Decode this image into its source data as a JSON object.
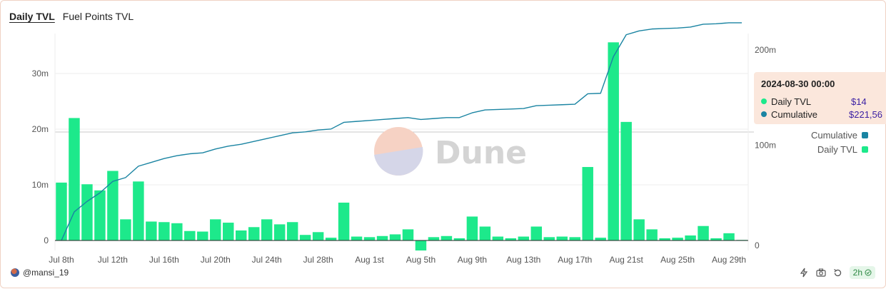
{
  "tabs": [
    {
      "label": "Daily TVL",
      "active": true
    },
    {
      "label": "Fuel Points TVL",
      "active": false
    }
  ],
  "watermark": "Dune",
  "author": "@mansi_19",
  "refresh": "2h",
  "tooltip": {
    "title": "2024-08-30 00:00",
    "rows": [
      {
        "name": "Daily TVL",
        "value": "$14",
        "color": "#1de98b"
      },
      {
        "name": "Cumulative",
        "value": "$221,56",
        "color": "#1a84a2"
      }
    ]
  },
  "legend": [
    {
      "label": "Cumulative",
      "color": "#1a84a2"
    },
    {
      "label": "Daily TVL",
      "color": "#1de98b"
    }
  ],
  "chart_data": {
    "type": "bar",
    "title": "",
    "left_axis": {
      "ticks": [
        "0",
        "10m",
        "20m",
        "30m"
      ],
      "values": [
        0,
        10,
        20,
        30
      ],
      "unit": "m"
    },
    "right_axis": {
      "ticks": [
        "0",
        "100m",
        "200m"
      ],
      "values": [
        0,
        100,
        200
      ],
      "unit": "m"
    },
    "x_ticks": [
      "Jul 8th",
      "Jul 12th",
      "Jul 16th",
      "Jul 20th",
      "Jul 24th",
      "Jul 28th",
      "Aug 1st",
      "Aug 5th",
      "Aug 9th",
      "Aug 13th",
      "Aug 17th",
      "Aug 21st",
      "Aug 25th",
      "Aug 29th"
    ],
    "x_tick_indices": [
      0,
      4,
      8,
      12,
      16,
      20,
      24,
      28,
      32,
      36,
      40,
      44,
      48,
      52
    ],
    "series": [
      {
        "name": "Daily TVL",
        "type": "bar",
        "axis": "left",
        "color": "#1de98b",
        "values": [
          10.4,
          22.0,
          10.1,
          9.0,
          12.5,
          3.8,
          10.6,
          3.4,
          3.3,
          3.1,
          1.7,
          1.6,
          3.8,
          3.2,
          1.8,
          2.4,
          3.8,
          2.9,
          3.3,
          1.0,
          1.5,
          0.5,
          6.8,
          0.7,
          0.6,
          0.8,
          1.1,
          2.0,
          -1.8,
          0.6,
          0.8,
          0.4,
          4.3,
          2.5,
          0.7,
          0.4,
          0.7,
          2.5,
          0.6,
          0.7,
          0.6,
          13.2,
          0.5,
          35.6,
          21.3,
          3.8,
          2.0,
          0.4,
          0.5,
          0.9,
          2.6,
          0.4,
          1.3,
          0.1
        ]
      },
      {
        "name": "Cumulative",
        "type": "line",
        "axis": "right",
        "color": "#1a84a2",
        "values": [
          0,
          30,
          41,
          50,
          62,
          66,
          78,
          82,
          86,
          89,
          91,
          92,
          96,
          99,
          101,
          104,
          107,
          110,
          113,
          114,
          116,
          117,
          124,
          125,
          126,
          127,
          128,
          129,
          127,
          128,
          129,
          129,
          134,
          137,
          137.5,
          138,
          138.5,
          141.5,
          142,
          142.5,
          143,
          154,
          154.5,
          193,
          216,
          220,
          222,
          222.5,
          223,
          224,
          227,
          227.5,
          228.5,
          228.5
        ]
      }
    ],
    "ylim_left": [
      -1.8,
      36
    ],
    "ylim_right": [
      0,
      240
    ],
    "legend_position": "right"
  }
}
